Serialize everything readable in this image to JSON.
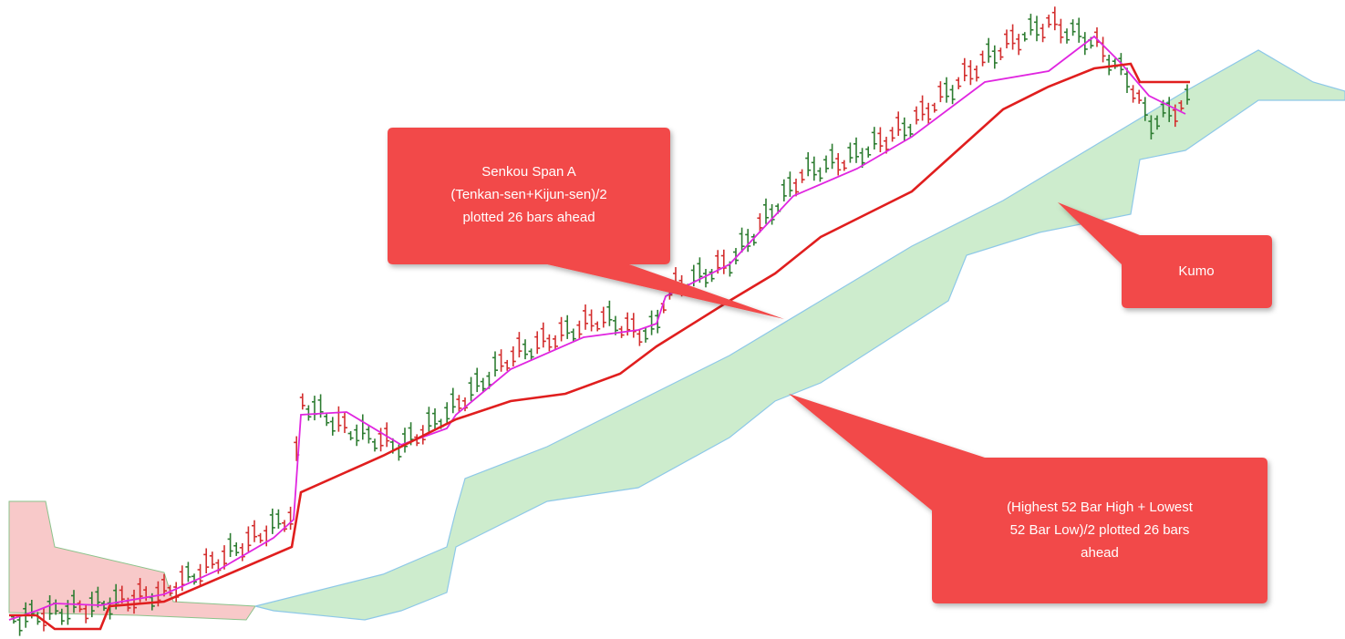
{
  "annotations": [
    {
      "lines": [
        "Senkou Span A",
        "(Tenkan-sen+Kijun-sen)/2",
        "plotted 26 bars ahead"
      ]
    },
    {
      "lines": [
        "Kumo"
      ]
    },
    {
      "lines": [
        "(Highest 52 Bar High + Lowest",
        "52 Bar Low)/2 plotted 26 bars",
        "ahead"
      ]
    }
  ]
}
